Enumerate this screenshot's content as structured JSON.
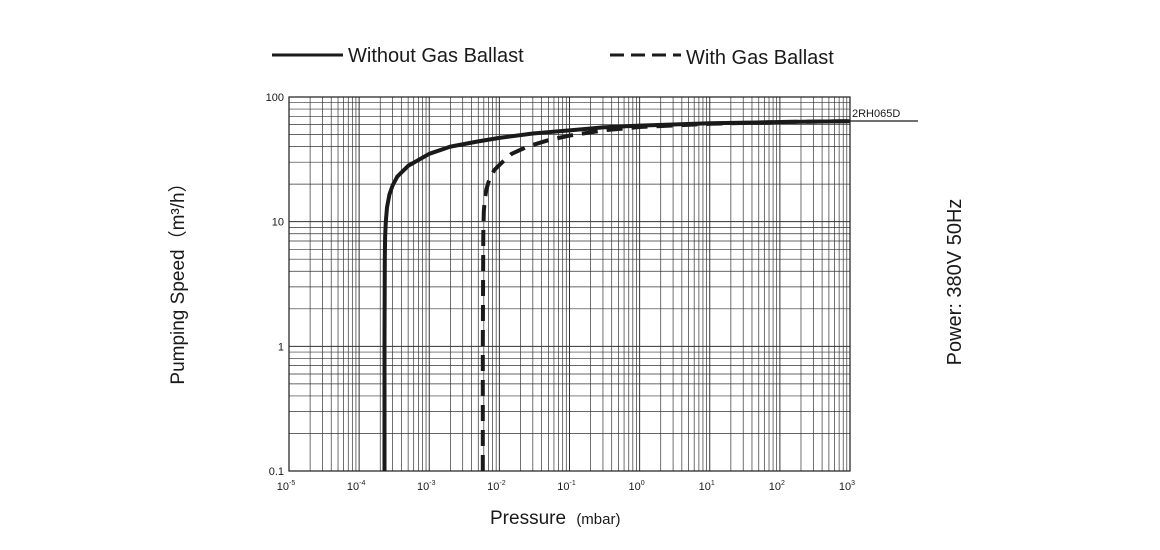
{
  "chart_data": {
    "type": "line",
    "xscale": "log",
    "yscale": "log",
    "xlim": [
      1e-05,
      1000
    ],
    "ylim": [
      0.1,
      100
    ],
    "x_ticks": [
      {
        "value": 1e-05,
        "base": "10",
        "exp": "-5"
      },
      {
        "value": 0.0001,
        "base": "10",
        "exp": "-4"
      },
      {
        "value": 0.001,
        "base": "10",
        "exp": "-3"
      },
      {
        "value": 0.01,
        "base": "10",
        "exp": "-2"
      },
      {
        "value": 0.1,
        "base": "10",
        "exp": "-1"
      },
      {
        "value": 1,
        "base": "10",
        "exp": "0"
      },
      {
        "value": 10,
        "base": "10",
        "exp": "1"
      },
      {
        "value": 100,
        "base": "10",
        "exp": "2"
      },
      {
        "value": 1000,
        "base": "10",
        "exp": "3"
      }
    ],
    "y_ticks": [
      {
        "value": 0.1,
        "label": "0.1"
      },
      {
        "value": 1,
        "label": "1"
      },
      {
        "value": 10,
        "label": "10"
      },
      {
        "value": 100,
        "label": "100"
      }
    ],
    "grid": true,
    "xlabel": "Pressure",
    "xlabel_unit": "(mbar)",
    "ylabel": "Pumping Speed（m³/h）",
    "legend": {
      "placement": "top",
      "entries": [
        "Without Gas Ballast",
        "With Gas Ballast"
      ]
    },
    "annotation": "2RH065D",
    "side_note": "Power:  380V 50Hz",
    "series": [
      {
        "name": "Without Gas Ballast",
        "style": "solid",
        "x": [
          0.00023,
          0.00023,
          0.000232,
          0.000235,
          0.00024,
          0.00025,
          0.00027,
          0.0003,
          0.00035,
          0.0005,
          0.001,
          0.002,
          0.005,
          0.01,
          0.03,
          0.1,
          0.3,
          1,
          10,
          100,
          1000
        ],
        "y": [
          0.1,
          1,
          5,
          7.5,
          10,
          13,
          16.5,
          19.5,
          23,
          28,
          35,
          40,
          44,
          47,
          51,
          54,
          57,
          59,
          61.5,
          63,
          64
        ]
      },
      {
        "name": "With Gas Ballast",
        "style": "dashed",
        "x": [
          0.0058,
          0.0058,
          0.0059,
          0.006,
          0.0062,
          0.0065,
          0.0072,
          0.0085,
          0.011,
          0.015,
          0.025,
          0.05,
          0.1,
          0.3,
          1,
          10,
          100,
          1000
        ],
        "y": [
          0.1,
          1,
          8,
          12,
          15,
          18,
          22,
          26,
          30,
          35,
          40,
          45,
          49,
          54,
          57.5,
          61,
          63,
          64
        ]
      }
    ]
  }
}
